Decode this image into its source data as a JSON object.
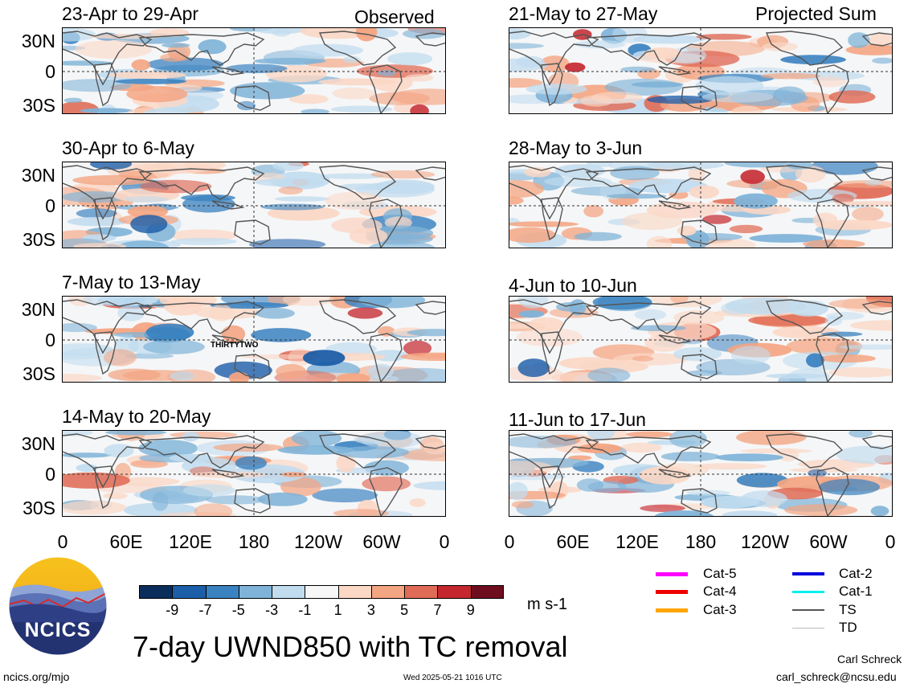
{
  "header": {
    "observed_label": "Observed",
    "projected_label": "Projected Sum"
  },
  "panels": [
    {
      "title": "23-Apr to 29-Apr",
      "group": "observed"
    },
    {
      "title": "30-Apr to 6-May",
      "group": "observed"
    },
    {
      "title": "7-May to 13-May",
      "group": "observed",
      "storm_label": "THIRTYTWO"
    },
    {
      "title": "14-May to 20-May",
      "group": "observed"
    },
    {
      "title": "21-May to 27-May",
      "group": "projected"
    },
    {
      "title": "28-May to 3-Jun",
      "group": "projected"
    },
    {
      "title": "4-Jun to 10-Jun",
      "group": "projected"
    },
    {
      "title": "11-Jun to 17-Jun",
      "group": "projected"
    }
  ],
  "axes": {
    "lat_labels": [
      "30N",
      "0",
      "30S"
    ],
    "lon_labels": [
      "0",
      "60E",
      "120E",
      "180",
      "120W",
      "60W",
      "0"
    ]
  },
  "colorbar": {
    "colors": [
      "#0b2d5c",
      "#1d5ea8",
      "#3a82c0",
      "#7fb3d8",
      "#c1dcef",
      "#f7f7f7",
      "#fbd7c5",
      "#f4a582",
      "#e06b56",
      "#c5272f",
      "#6e0d1e"
    ],
    "labels": [
      "-9",
      "-7",
      "-5",
      "-3",
      "-1",
      "1",
      "3",
      "5",
      "7",
      "9"
    ],
    "units": "m s-1"
  },
  "legend": {
    "items": [
      {
        "label": "Cat-5",
        "color": "#ff00ff"
      },
      {
        "label": "Cat-4",
        "color": "#ee0000"
      },
      {
        "label": "Cat-3",
        "color": "#ffa500"
      },
      {
        "label": "Cat-2",
        "color": "#0000dd"
      },
      {
        "label": "Cat-1",
        "color": "#00eeee"
      },
      {
        "label": "TS",
        "color": "#555555"
      },
      {
        "label": "TD",
        "color": "#bbbbbb"
      }
    ]
  },
  "footer": {
    "main_title": "7-day UWND850 with TC removal",
    "website": "ncics.org/mjo",
    "timestamp": "Wed 2025-05-21 1016 UTC",
    "author": "Carl Schreck",
    "email": "carl_schreck@ncsu.edu",
    "logo_text": "NCICS"
  }
}
